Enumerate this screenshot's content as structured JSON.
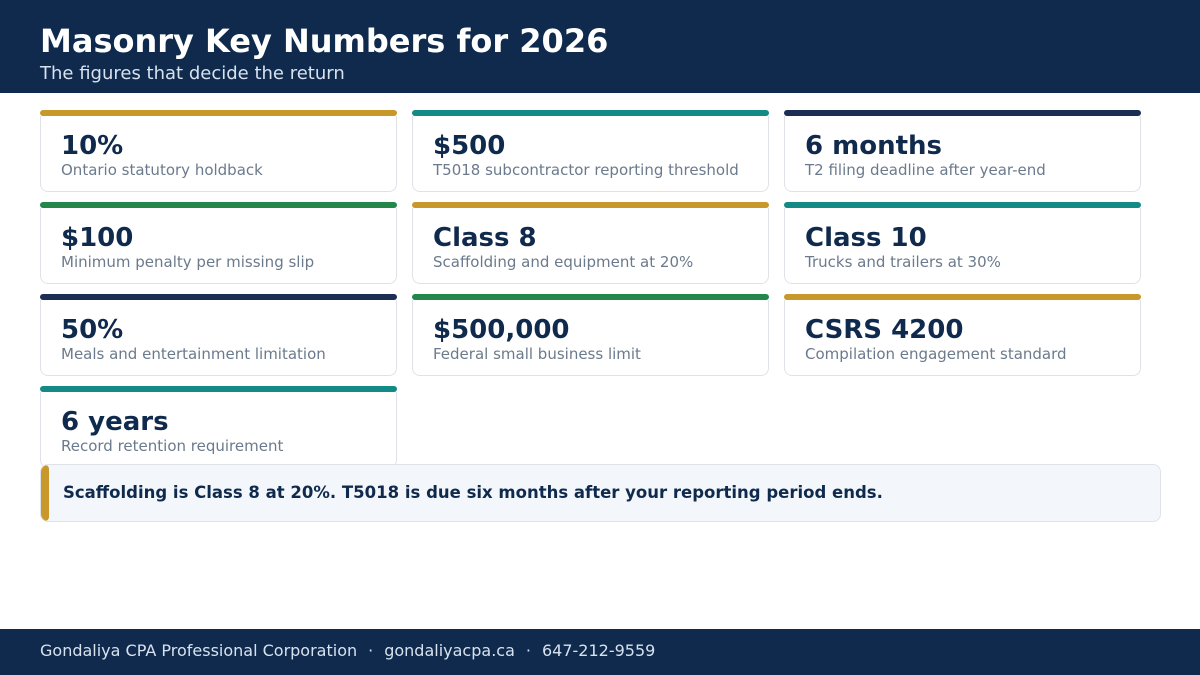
{
  "header": {
    "title": "Masonry Key Numbers for 2026",
    "subtitle": "The figures that decide the return"
  },
  "colors": {
    "navy": "#0f2a4d",
    "gold": "#c9982a",
    "teal": "#138a86",
    "green": "#23874a",
    "dark_navy": "#1b2f55"
  },
  "cards": [
    {
      "value": "10%",
      "label": "Ontario statutory holdback",
      "accent": "#c9982a"
    },
    {
      "value": "$500",
      "label": "T5018 subcontractor reporting threshold",
      "accent": "#138a86"
    },
    {
      "value": "6 months",
      "label": "T2 filing deadline after year-end",
      "accent": "#1b2f55"
    },
    {
      "value": "$100",
      "label": "Minimum penalty per missing slip",
      "accent": "#23874a"
    },
    {
      "value": "Class 8",
      "label": "Scaffolding and equipment at 20%",
      "accent": "#c9982a"
    },
    {
      "value": "Class 10",
      "label": "Trucks and trailers at 30%",
      "accent": "#138a86"
    },
    {
      "value": "50%",
      "label": "Meals and entertainment limitation",
      "accent": "#1b2f55"
    },
    {
      "value": "$500,000",
      "label": "Federal small business limit",
      "accent": "#23874a"
    },
    {
      "value": "CSRS 4200",
      "label": "Compilation engagement standard",
      "accent": "#c9982a"
    },
    {
      "value": "6 years",
      "label": "Record retention requirement",
      "accent": "#138a86"
    }
  ],
  "note": {
    "text": "Scaffolding is Class 8 at 20%. T5018 is due six months after your reporting period ends."
  },
  "footer": {
    "company": "Gondaliya CPA Professional Corporation",
    "separator": "·",
    "website": "gondaliyacpa.ca",
    "phone": "647-212-9559"
  }
}
